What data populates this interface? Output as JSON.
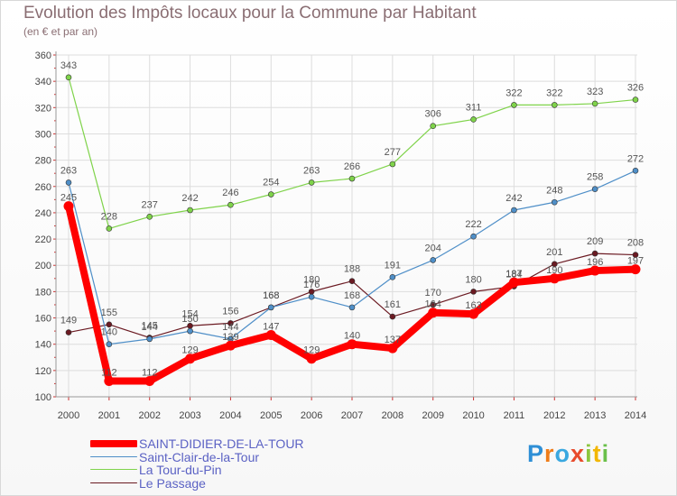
{
  "header": {
    "title": "Evolution des Impôts locaux pour la Commune par Habitant",
    "subtitle": "(en € et par an)"
  },
  "logo": {
    "text": "Proxiti",
    "colors": [
      "#2e8fd6",
      "#ef7d1a",
      "#3aa8e0",
      "#e84b2c",
      "#8cc63f",
      "#f2b705",
      "#6ac04a"
    ]
  },
  "colors": {
    "saint_didier": "#ff0000",
    "saint_clair": "#4f8fc8",
    "la_tour": "#7fd34a",
    "le_passage": "#6b1a22",
    "axis_text": "#444444",
    "grid": "#dddddd"
  },
  "chart_data": {
    "type": "line",
    "title": "Evolution des Impôts locaux pour la Commune par Habitant",
    "subtitle": "(en € et par an)",
    "x": [
      2000,
      2001,
      2002,
      2003,
      2004,
      2005,
      2006,
      2007,
      2008,
      2009,
      2010,
      2011,
      2012,
      2013,
      2014
    ],
    "ylim": [
      100,
      360
    ],
    "yticks": [
      100,
      120,
      140,
      160,
      180,
      200,
      220,
      240,
      260,
      280,
      300,
      320,
      340,
      360
    ],
    "grid": true,
    "legend": "bottom-left",
    "series": [
      {
        "name": "SAINT-DIDIER-DE-LA-TOUR",
        "color": "#ff0000",
        "width": 8,
        "values": [
          245,
          112,
          112,
          129,
          139,
          147,
          129,
          140,
          137,
          164,
          163,
          187,
          190,
          196,
          197
        ]
      },
      {
        "name": "Saint-Clair-de-la-Tour",
        "color": "#4f8fc8",
        "width": 1.2,
        "values": [
          263,
          140,
          144,
          150,
          144,
          168,
          176,
          168,
          191,
          204,
          222,
          242,
          248,
          258,
          272
        ]
      },
      {
        "name": "La Tour-du-Pin",
        "color": "#7fd34a",
        "width": 1.2,
        "values": [
          343,
          228,
          237,
          242,
          246,
          254,
          263,
          266,
          277,
          306,
          311,
          322,
          322,
          323,
          326
        ]
      },
      {
        "name": "Le Passage",
        "color": "#6b1a22",
        "width": 1.2,
        "values": [
          149,
          155,
          145,
          154,
          156,
          168,
          180,
          188,
          161,
          170,
          180,
          184,
          201,
          209,
          208
        ]
      }
    ]
  }
}
